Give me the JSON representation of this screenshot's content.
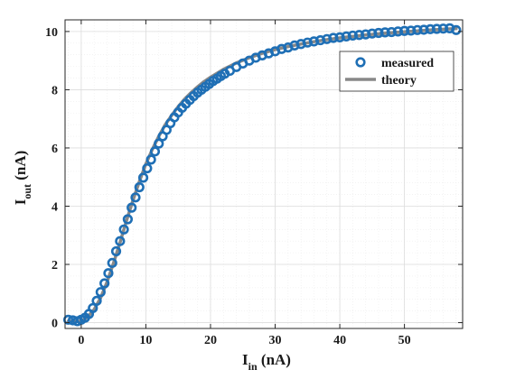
{
  "chart_data": {
    "type": "scatter",
    "xlabel_main": "I",
    "xlabel_sub": "in",
    "xlabel_unit": " (nA)",
    "ylabel_main": "I",
    "ylabel_sub": "out",
    "ylabel_unit": " (nA)",
    "xlim": [
      -2.5,
      59
    ],
    "ylim": [
      -0.2,
      10.4
    ],
    "xticks": [
      0,
      10,
      20,
      30,
      40,
      50
    ],
    "yticks": [
      0,
      2,
      4,
      6,
      8,
      10
    ],
    "xtick_labels": [
      "0",
      "10",
      "20",
      "30",
      "40",
      "50"
    ],
    "ytick_labels": [
      "0",
      "2",
      "4",
      "6",
      "8",
      "10"
    ],
    "grid": true,
    "legend_position": "top-right",
    "series": [
      {
        "name": "measured",
        "style": "markers",
        "color": "#1f6fb5",
        "x": [
          -2,
          -1.3,
          -0.6,
          0,
          0.6,
          1.2,
          1.8,
          2.4,
          3,
          3.6,
          4.2,
          4.8,
          5.4,
          6,
          6.6,
          7.2,
          7.8,
          8.4,
          9,
          9.6,
          10.2,
          10.8,
          11.4,
          12,
          12.6,
          13.2,
          13.8,
          14.4,
          15,
          15.6,
          16.2,
          16.8,
          17.4,
          18,
          18.6,
          19.2,
          19.8,
          20.4,
          21,
          21.6,
          22.2,
          23,
          24,
          25,
          26,
          27,
          28,
          29,
          30,
          31,
          32,
          33,
          34,
          35,
          36,
          37,
          38,
          39,
          40,
          41,
          42,
          43,
          44,
          45,
          46,
          47,
          48,
          49,
          50,
          51,
          52,
          53,
          54,
          55,
          56,
          57,
          58
        ],
        "y": [
          0.1,
          0.08,
          0.05,
          0.1,
          0.17,
          0.3,
          0.5,
          0.75,
          1.05,
          1.35,
          1.7,
          2.05,
          2.45,
          2.8,
          3.2,
          3.55,
          3.95,
          4.3,
          4.65,
          4.98,
          5.3,
          5.6,
          5.88,
          6.15,
          6.4,
          6.62,
          6.85,
          7.05,
          7.22,
          7.38,
          7.52,
          7.65,
          7.78,
          7.9,
          8.0,
          8.1,
          8.2,
          8.3,
          8.38,
          8.47,
          8.55,
          8.65,
          8.78,
          8.9,
          9.0,
          9.1,
          9.18,
          9.25,
          9.32,
          9.4,
          9.45,
          9.52,
          9.57,
          9.62,
          9.66,
          9.7,
          9.74,
          9.78,
          9.8,
          9.83,
          9.86,
          9.88,
          9.9,
          9.93,
          9.95,
          9.97,
          9.98,
          10.0,
          10.02,
          10.03,
          10.05,
          10.06,
          10.08,
          10.09,
          10.1,
          10.11,
          10.05
        ]
      },
      {
        "name": "theory",
        "style": "line",
        "color": "#888888",
        "x": [
          -2,
          -1,
          0,
          1,
          2,
          3,
          4,
          5,
          6,
          7,
          8,
          9,
          10,
          11,
          12,
          13,
          14,
          15,
          16,
          17,
          18,
          19,
          20,
          22,
          24,
          26,
          28,
          30,
          32,
          34,
          36,
          38,
          40,
          42,
          44,
          46,
          48,
          50,
          52,
          54,
          56,
          58
        ],
        "y": [
          0.05,
          0.04,
          0.05,
          0.2,
          0.45,
          0.85,
          1.4,
          2.05,
          2.75,
          3.5,
          4.2,
          4.85,
          5.45,
          5.95,
          6.4,
          6.8,
          7.12,
          7.42,
          7.68,
          7.9,
          8.1,
          8.28,
          8.43,
          8.7,
          8.92,
          9.1,
          9.25,
          9.38,
          9.48,
          9.57,
          9.65,
          9.72,
          9.78,
          9.83,
          9.88,
          9.92,
          9.96,
          9.99,
          10.02,
          10.05,
          10.08,
          10.1
        ]
      }
    ]
  }
}
